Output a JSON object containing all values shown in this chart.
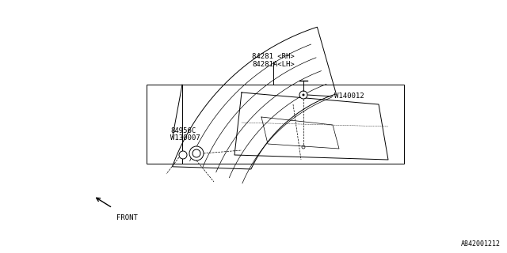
{
  "bg_color": "#ffffff",
  "line_color": "#000000",
  "text_color": "#000000",
  "title_line1": "84281 <RH>",
  "title_line2": "84281A<LH>",
  "label_w140012": "W140012",
  "label_84956c": "84956C",
  "label_w130007": "W130007",
  "label_front": "FRONT",
  "label_bottom_right": "A842001212",
  "fig_width": 6.4,
  "fig_height": 3.2,
  "dpi": 100
}
